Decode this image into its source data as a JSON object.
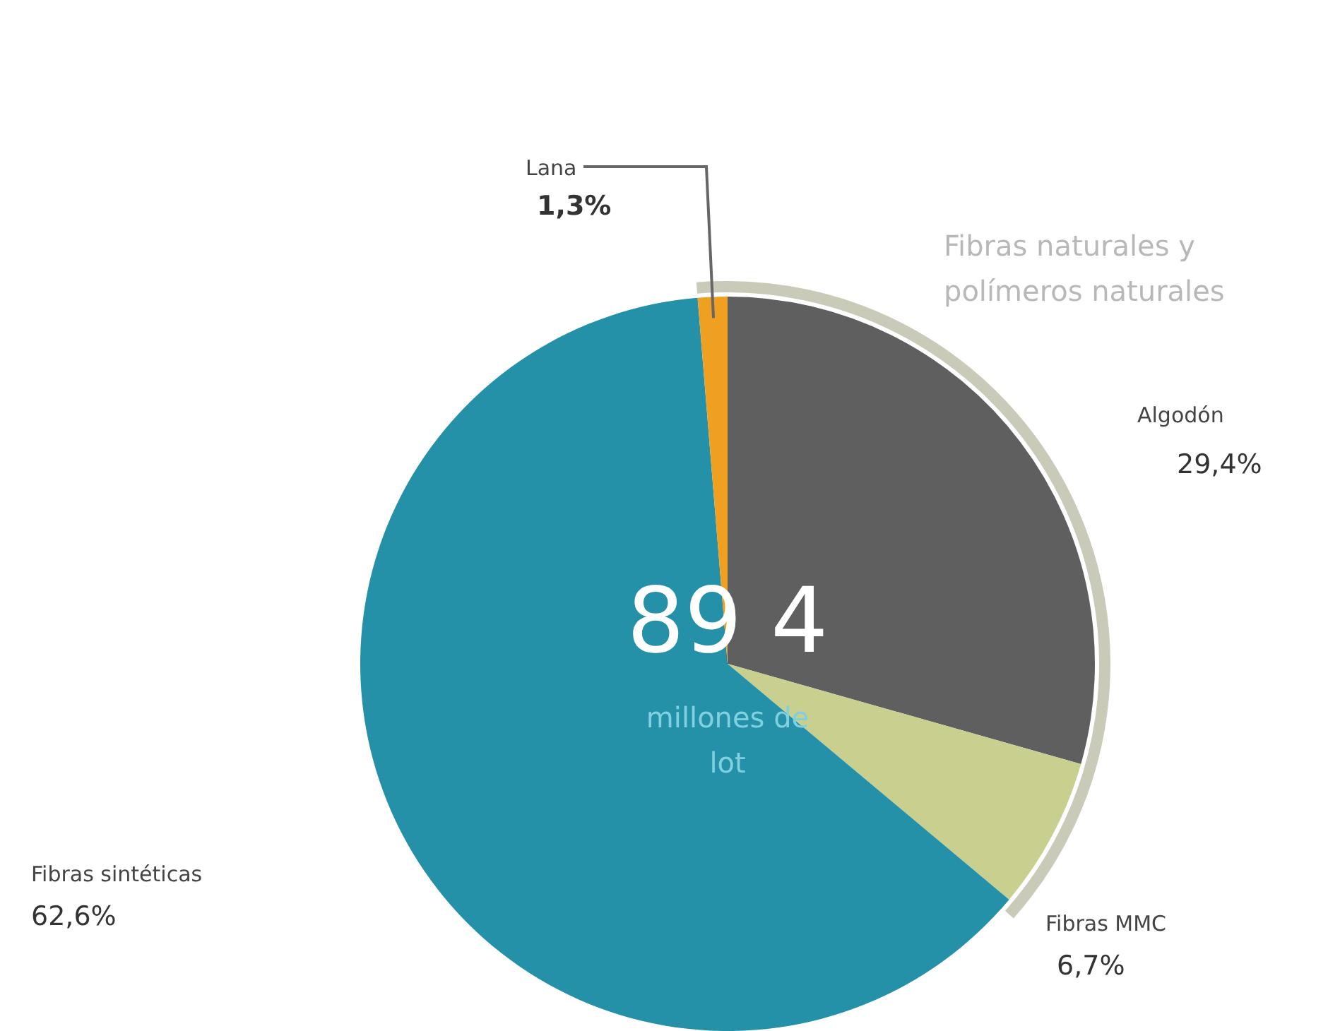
{
  "chart_data": {
    "type": "pie",
    "categories": [
      "Algodón",
      "Fibras MMC",
      "Fibras sintéticas",
      "Lana"
    ],
    "values": [
      29.4,
      6.7,
      62.6,
      1.3
    ],
    "value_labels": [
      "29,4%",
      "6,7%",
      "62,6%",
      "1,3%"
    ],
    "colors": [
      "#5f5f60",
      "#c9d08f",
      "#2591a8",
      "#f0a020"
    ],
    "annotations": [
      "Fibras naturales y polímeros naturales",
      "89 4",
      "millones de",
      "lot"
    ],
    "legend": false
  }
}
